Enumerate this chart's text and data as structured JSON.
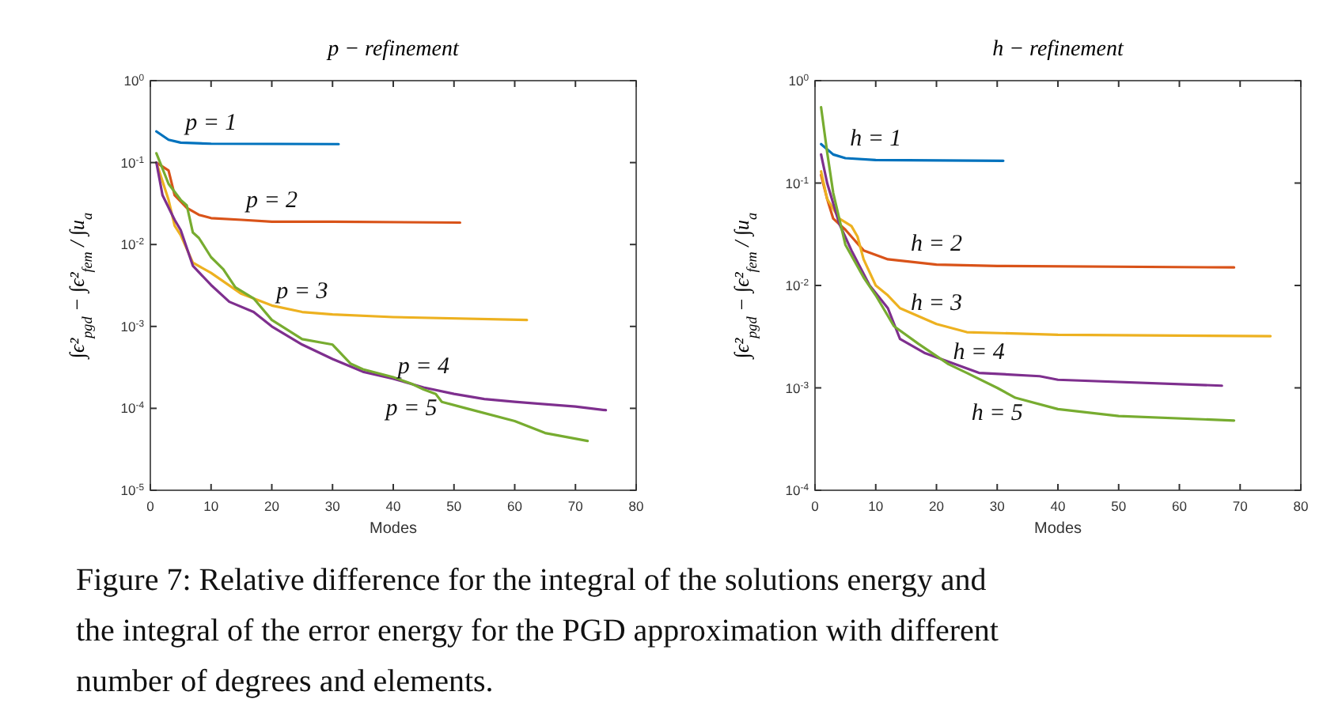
{
  "chart_data": [
    {
      "type": "line",
      "title": "p − refinement",
      "xlabel": "Modes",
      "ylabel": "∫ϵ²$_{pgd}$ − ∫ϵ²$_{fem}$ / ∫u$_{a}$",
      "log": "y",
      "grid": false,
      "xlim": [
        0,
        80
      ],
      "xticks": [
        0,
        10,
        20,
        30,
        40,
        50,
        60,
        70,
        80
      ],
      "ylim": [
        1e-05,
        1
      ],
      "yticks": [
        {
          "value": 1e-05,
          "label": "10$^{-5}$"
        },
        {
          "value": 0.0001,
          "label": "10$^{-4}$"
        },
        {
          "value": 0.001,
          "label": "10$^{-3}$"
        },
        {
          "value": 0.01,
          "label": "10$^{-2}$"
        },
        {
          "value": 0.1,
          "label": "10$^{-1}$"
        },
        {
          "value": 1,
          "label": "10$^{0}$"
        }
      ],
      "annotations": [
        "Figure 7: Relative difference for the integral of the solutions energy and the integral of the error energy for the PGD approximation with different number of degrees and elements."
      ],
      "series": [
        {
          "name": "p = 1",
          "color": "#0072bd",
          "x": [
            1,
            3,
            5,
            10,
            31
          ],
          "values": [
            0.24,
            0.19,
            0.175,
            0.17,
            0.168
          ]
        },
        {
          "name": "p = 2",
          "color": "#d95319",
          "x": [
            1,
            3,
            4,
            6,
            8,
            10,
            15,
            20,
            30,
            51
          ],
          "values": [
            0.1,
            0.08,
            0.04,
            0.028,
            0.023,
            0.021,
            0.02,
            0.019,
            0.019,
            0.0185
          ]
        },
        {
          "name": "p = 3",
          "color": "#edb120",
          "x": [
            1,
            3,
            4,
            5,
            7,
            10,
            15,
            20,
            25,
            30,
            40,
            62
          ],
          "values": [
            0.1,
            0.035,
            0.017,
            0.013,
            0.006,
            0.0045,
            0.0025,
            0.0018,
            0.0015,
            0.0014,
            0.0013,
            0.0012
          ]
        },
        {
          "name": "p = 4",
          "color": "#7e2f8e",
          "x": [
            1,
            2,
            4,
            5,
            7,
            10,
            13,
            17,
            20,
            25,
            30,
            35,
            40,
            45,
            50,
            55,
            60,
            70,
            75
          ],
          "values": [
            0.1,
            0.04,
            0.02,
            0.015,
            0.0055,
            0.0032,
            0.002,
            0.0015,
            0.001,
            0.0006,
            0.0004,
            0.00028,
            0.00023,
            0.00018,
            0.00015,
            0.00013,
            0.00012,
            0.000105,
            9.5e-05
          ]
        },
        {
          "name": "p = 5",
          "color": "#77ac30",
          "x": [
            1,
            3,
            5,
            6,
            7,
            8,
            10,
            12,
            14,
            17,
            20,
            25,
            30,
            33,
            35,
            40,
            43,
            45,
            47,
            48,
            52,
            60,
            65,
            72
          ],
          "values": [
            0.13,
            0.055,
            0.035,
            0.03,
            0.014,
            0.012,
            0.007,
            0.005,
            0.003,
            0.0022,
            0.0012,
            0.0007,
            0.0006,
            0.00035,
            0.0003,
            0.00024,
            0.0002,
            0.00017,
            0.00015,
            0.00012,
            0.0001,
            7e-05,
            5e-05,
            4e-05
          ]
        }
      ]
    },
    {
      "type": "line",
      "title": "h − refinement",
      "xlabel": "Modes",
      "ylabel": "∫ϵ²$_{pgd}$ − ∫ϵ²$_{fem}$ / ∫u$_{a}$",
      "log": "y",
      "grid": false,
      "xlim": [
        0,
        80
      ],
      "xticks": [
        0,
        10,
        20,
        30,
        40,
        50,
        60,
        70,
        80
      ],
      "ylim": [
        0.0001,
        1
      ],
      "yticks": [
        {
          "value": 0.0001,
          "label": "10$^{-4}$"
        },
        {
          "value": 0.001,
          "label": "10$^{-3}$"
        },
        {
          "value": 0.01,
          "label": "10$^{-2}$"
        },
        {
          "value": 0.1,
          "label": "10$^{-1}$"
        },
        {
          "value": 1,
          "label": "10$^{0}$"
        }
      ],
      "series": [
        {
          "name": "h = 1",
          "color": "#0072bd",
          "x": [
            1,
            3,
            5,
            10,
            31
          ],
          "values": [
            0.24,
            0.19,
            0.175,
            0.168,
            0.165
          ]
        },
        {
          "name": "h = 2",
          "color": "#d95319",
          "x": [
            1,
            2,
            3,
            5,
            6,
            8,
            12,
            20,
            30,
            69
          ],
          "values": [
            0.12,
            0.07,
            0.045,
            0.035,
            0.03,
            0.022,
            0.018,
            0.016,
            0.0155,
            0.015
          ]
        },
        {
          "name": "h = 3",
          "color": "#edb120",
          "x": [
            1,
            2,
            4,
            6,
            7,
            8,
            10,
            12,
            14,
            20,
            25,
            40,
            75
          ],
          "values": [
            0.13,
            0.07,
            0.045,
            0.038,
            0.03,
            0.018,
            0.01,
            0.008,
            0.006,
            0.0042,
            0.0035,
            0.0033,
            0.0032
          ]
        },
        {
          "name": "h = 4",
          "color": "#7e2f8e",
          "x": [
            1,
            2,
            4,
            6,
            9,
            12,
            14,
            18,
            22,
            27,
            37,
            40,
            67
          ],
          "values": [
            0.19,
            0.1,
            0.04,
            0.022,
            0.01,
            0.006,
            0.003,
            0.0022,
            0.0018,
            0.0014,
            0.0013,
            0.0012,
            0.00105
          ]
        },
        {
          "name": "h = 5",
          "color": "#77ac30",
          "x": [
            1,
            2,
            3,
            5,
            8,
            10,
            13,
            17,
            22,
            25,
            30,
            33,
            40,
            50,
            69
          ],
          "values": [
            0.55,
            0.2,
            0.08,
            0.025,
            0.012,
            0.008,
            0.004,
            0.0027,
            0.0017,
            0.0014,
            0.001,
            0.0008,
            0.00062,
            0.00053,
            0.00048
          ]
        }
      ]
    }
  ]
}
